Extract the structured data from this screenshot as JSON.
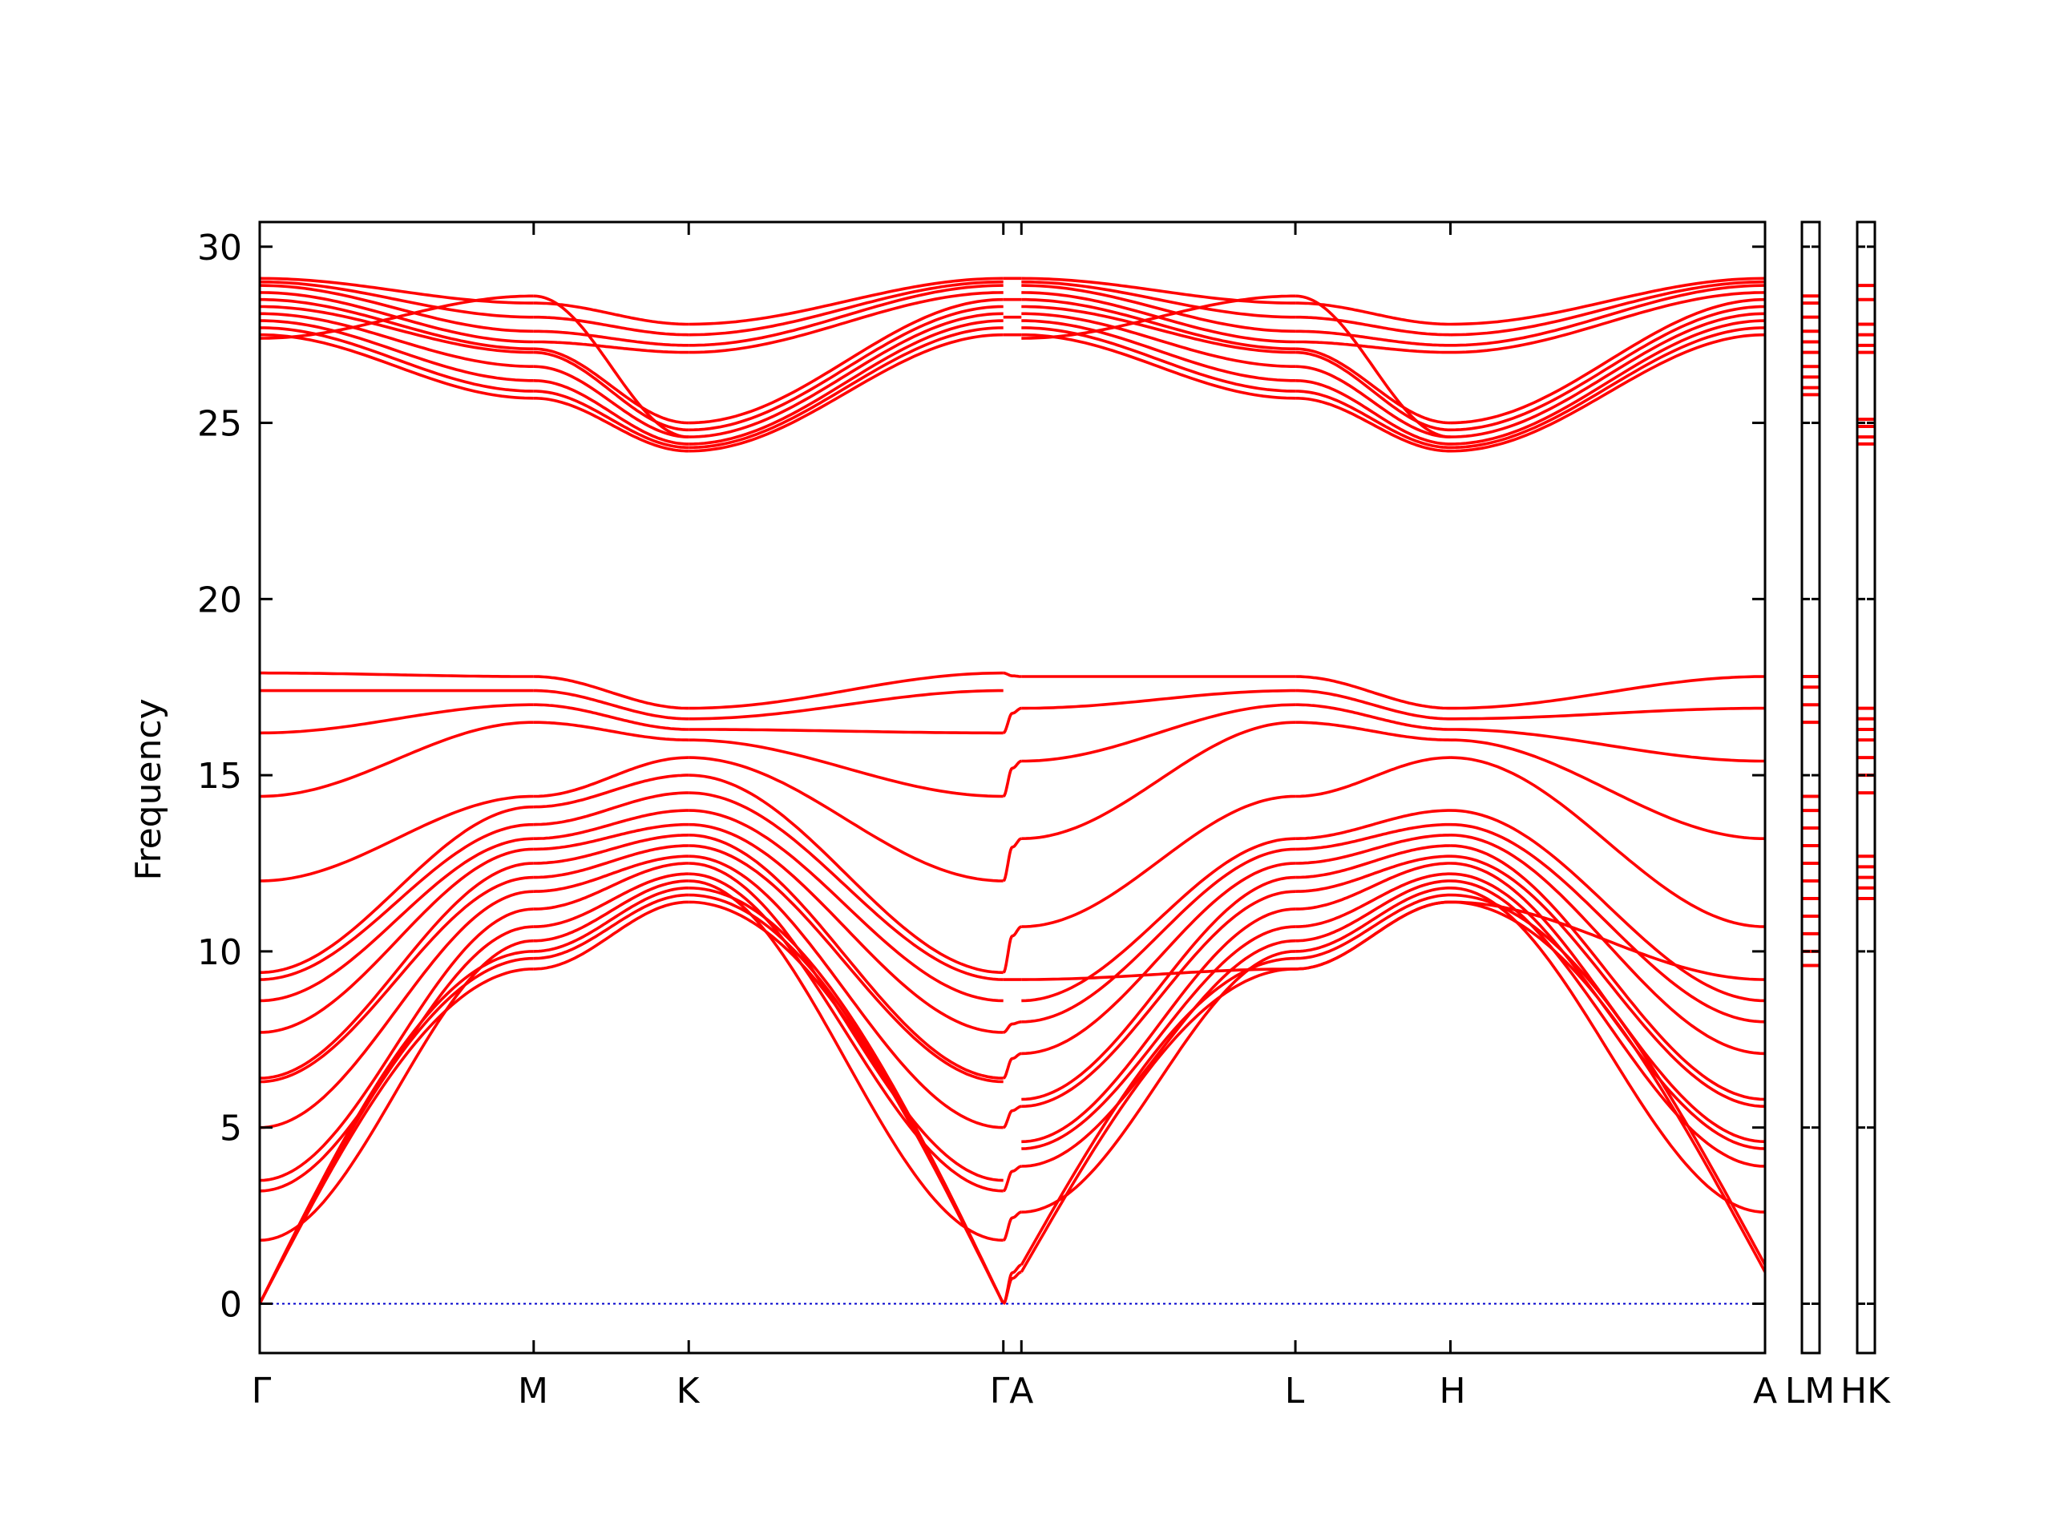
{
  "chart_data": {
    "type": "line",
    "title": "",
    "ylabel": "Frequency",
    "xlabel": "",
    "ylim": [
      -1.4,
      30.7
    ],
    "yticks": [
      0,
      5,
      10,
      15,
      20,
      25,
      30
    ],
    "grid": false,
    "line_color": "#ff0000",
    "zero_line_color": "#0000cc",
    "panels": [
      {
        "labels": [
          "Γ",
          "M",
          "K",
          "Γ",
          "A",
          "L",
          "H",
          "A"
        ],
        "kpos": [
          0,
          0.182,
          0.285,
          0.494,
          0.506,
          0.688,
          0.791,
          1.0
        ]
      },
      {
        "labels": [
          "L",
          "M"
        ]
      },
      {
        "labels": [
          "H",
          "K"
        ]
      }
    ],
    "main_tick_labels": [
      "Γ",
      "M",
      "K",
      "ΓA",
      "L",
      "H",
      "A"
    ],
    "side1_label": "LM",
    "side2_label": "HK",
    "optical_gamma": [
      27.5,
      27.7,
      27.9,
      28.1,
      28.3,
      28.5,
      28.7,
      28.9,
      29.0,
      29.1
    ],
    "optical_M": [
      25.7,
      25.9,
      26.2,
      26.6,
      27.0,
      27.1,
      27.3,
      27.6,
      28.0,
      28.4,
      28.6
    ],
    "optical_K": [
      24.2,
      24.3,
      24.4,
      24.6,
      24.8,
      25.0,
      27.0,
      27.2,
      27.5,
      27.8,
      28.5,
      28.9
    ],
    "high_gamma": [
      9.2,
      9.4,
      12.0,
      14.4,
      16.2,
      17.4,
      17.9
    ],
    "high_M": [
      13.6,
      14.1,
      14.4,
      16.5,
      17.0,
      17.4,
      17.8
    ],
    "high_K": [
      14.5,
      15.0,
      15.5,
      16.0,
      16.3,
      16.6,
      16.9
    ],
    "high_A": [
      10.7,
      13.2,
      15.4,
      16.9,
      17.8
    ],
    "low_gamma": [
      0,
      0,
      0,
      1.8,
      3.2,
      3.5,
      5.0,
      6.3,
      6.4,
      7.7,
      8.6
    ],
    "low_M": [
      9.5,
      9.8,
      10.0,
      10.3,
      10.7,
      11.2,
      11.7,
      12.1,
      12.5,
      12.9,
      13.2
    ],
    "low_K": [
      11.4,
      11.6,
      11.8,
      12.0,
      12.2,
      12.5,
      12.7,
      13.0,
      13.3,
      13.6,
      14.0
    ],
    "low_A": [
      0.9,
      1.1,
      2.6,
      3.9,
      4.4,
      4.6,
      5.6,
      5.8,
      7.1,
      8.0,
      8.6,
      9.2
    ]
  }
}
